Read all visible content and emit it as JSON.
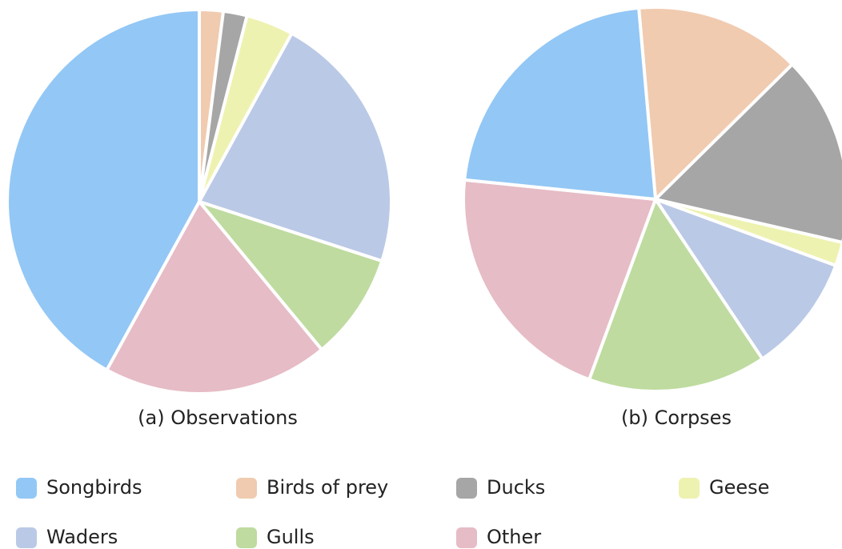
{
  "chart_data": [
    {
      "type": "pie",
      "title": "(a) Observations",
      "categories": [
        "Songbirds",
        "Birds of prey",
        "Ducks",
        "Geese",
        "Waders",
        "Gulls",
        "Other"
      ],
      "values": [
        42,
        2,
        2,
        4,
        22,
        9,
        19
      ],
      "colors": [
        "#93c7f5",
        "#f0cbb0",
        "#a6a6a6",
        "#eef2b0",
        "#bac9e6",
        "#bfdba0",
        "#e6bcc6"
      ]
    },
    {
      "type": "pie",
      "title": "(b) Corpses",
      "categories": [
        "Songbirds",
        "Birds of prey",
        "Ducks",
        "Geese",
        "Waders",
        "Gulls",
        "Other"
      ],
      "values": [
        22,
        14,
        16,
        2,
        10,
        15,
        21
      ],
      "colors": [
        "#93c7f5",
        "#f0cbb0",
        "#a6a6a6",
        "#eef2b0",
        "#bac9e6",
        "#bfdba0",
        "#e6bcc6"
      ]
    }
  ]
}
